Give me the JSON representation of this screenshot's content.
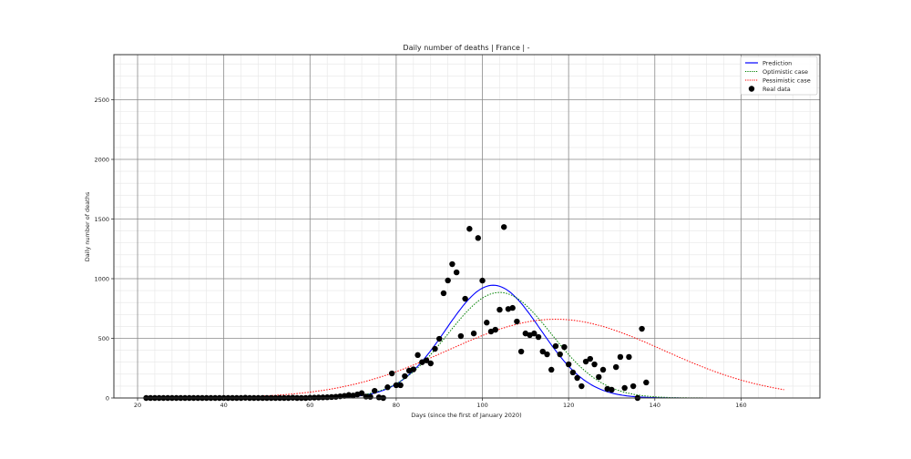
{
  "chart_data": {
    "type": "line+scatter",
    "title": "Daily number of deaths | France | -",
    "xlabel": "Days (since the first of January 2020)",
    "ylabel": "Daily number of deaths",
    "xlim": [
      14.5,
      178.3
    ],
    "ylim": [
      0,
      2878
    ],
    "xticks": [
      20,
      40,
      60,
      80,
      100,
      120,
      140,
      160
    ],
    "yticks": [
      0,
      500,
      1000,
      1500,
      2000,
      2500
    ],
    "grid": {
      "major": true,
      "minor": true
    },
    "legend": {
      "position": "upper right",
      "entries": [
        {
          "label": "Prediction",
          "style": "solid-line",
          "color": "#0000ff"
        },
        {
          "label": "Optimistic case",
          "style": "dotted-line",
          "color": "#008000"
        },
        {
          "label": "Pessimistic case",
          "style": "dotted-line",
          "color": "#ff0000"
        },
        {
          "label": "Real data",
          "style": "marker",
          "color": "#000000"
        }
      ]
    },
    "series": [
      {
        "name": "Prediction",
        "kind": "curve",
        "color": "#0000ff",
        "dash": "",
        "peak": 945,
        "peak_day": 102.5,
        "sigma": 11,
        "x_range": [
          22,
          170
        ]
      },
      {
        "name": "Optimistic case",
        "kind": "curve",
        "color": "#008000",
        "dash": "1.5,1.5",
        "peak": 885,
        "peak_day": 104,
        "sigma": 12,
        "x_range": [
          22,
          170
        ]
      },
      {
        "name": "Pessimistic case",
        "kind": "curve",
        "color": "#ff0000",
        "dash": "1.5,1.5",
        "peak": 660,
        "peak_day": 117,
        "sigma": 25,
        "x_range": [
          22,
          170
        ]
      },
      {
        "name": "Real data",
        "kind": "scatter",
        "color": "#000000",
        "x": [
          22,
          23,
          24,
          25,
          26,
          27,
          28,
          29,
          30,
          31,
          32,
          33,
          34,
          35,
          36,
          37,
          38,
          39,
          40,
          41,
          42,
          43,
          44,
          45,
          46,
          47,
          48,
          49,
          50,
          51,
          52,
          53,
          54,
          55,
          56,
          57,
          58,
          59,
          60,
          61,
          62,
          63,
          64,
          65,
          66,
          67,
          68,
          69,
          70,
          71,
          72,
          73,
          74,
          75,
          76,
          77,
          78,
          79,
          80,
          81,
          82,
          83,
          84,
          85,
          86,
          87,
          88,
          89,
          90,
          91,
          92,
          93,
          94,
          95,
          96,
          97,
          98,
          99,
          100,
          101,
          102,
          103,
          104,
          105,
          106,
          107,
          108,
          109,
          110,
          111,
          112,
          113,
          114,
          115,
          116,
          117,
          118,
          119,
          120,
          121,
          122,
          123,
          124,
          125,
          126,
          127,
          128,
          129,
          130,
          131,
          132,
          133,
          134,
          135,
          136,
          137,
          138
        ],
        "y": [
          0,
          0,
          0,
          0,
          0,
          0,
          0,
          0,
          0,
          0,
          0,
          0,
          0,
          0,
          0,
          0,
          0,
          0,
          0,
          0,
          0,
          0,
          0,
          2,
          0,
          0,
          0,
          0,
          0,
          0,
          0,
          0,
          0,
          0,
          2,
          0,
          0,
          0,
          2,
          3,
          4,
          5,
          6,
          8,
          10,
          14,
          18,
          25,
          20,
          30,
          40,
          12,
          10,
          60,
          5,
          0,
          90,
          206,
          107,
          107,
          183,
          229,
          240,
          360,
          300,
          315,
          290,
          412,
          496,
          878,
          985,
          1122,
          1053,
          519,
          832,
          1418,
          541,
          1341,
          984,
          632,
          557,
          572,
          740,
          1433,
          746,
          755,
          641,
          389,
          541,
          527,
          541,
          511,
          389,
          366,
          237,
          435,
          366,
          427,
          282,
          214,
          168,
          99,
          305,
          328,
          282,
          176,
          237,
          76,
          69,
          259,
          344,
          84,
          344,
          99,
          0,
          580,
          130
        ]
      }
    ]
  }
}
